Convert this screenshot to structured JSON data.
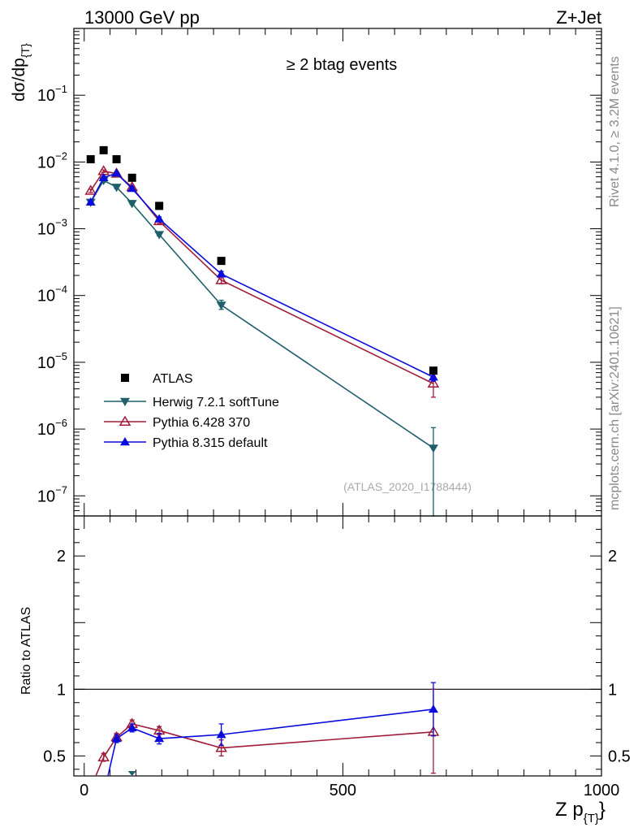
{
  "header": {
    "energy": "13000 GeV pp",
    "process": "Z+Jet",
    "side_label_top": "Rivet 4.1.0, ≥ 3.2M events",
    "side_label_bottom": "mcplots.cern.ch [arXiv:2401.10621]"
  },
  "chart_data": [
    {
      "type": "scatter",
      "panel": "main",
      "title": "≥ 2 btag events",
      "watermark": "(ATLAS_2020_I1788444)",
      "ylabel": "dσ/dp",
      "ylabel_sub": "{T}",
      "yscale": "log",
      "ylim": [
        5e-08,
        1
      ],
      "xlim": [
        -20,
        1000
      ],
      "ytick_labels": [
        {
          "base": "10",
          "exp": "−1",
          "value": 0.1
        },
        {
          "base": "10",
          "exp": "−2",
          "value": 0.01
        },
        {
          "base": "10",
          "exp": "−3",
          "value": 0.001
        },
        {
          "base": "10",
          "exp": "−4",
          "value": 0.0001
        },
        {
          "base": "10",
          "exp": "−5",
          "value": 1e-05
        },
        {
          "base": "10",
          "exp": "−6",
          "value": 1e-06
        },
        {
          "base": "10",
          "exp": "−7",
          "value": 1e-07
        }
      ],
      "series": [
        {
          "name": "ATLAS",
          "style": "data",
          "marker": "square",
          "color": "#000000",
          "x": [
            12.5,
            37.5,
            62.5,
            92.5,
            145,
            265,
            675
          ],
          "y": [
            0.011,
            0.015,
            0.011,
            0.0058,
            0.0022,
            0.00033,
            7.5e-06
          ]
        },
        {
          "name": "Herwig 7.2.1 softTune",
          "style": "line",
          "marker": "triangle-down",
          "color": "#1f5f6b",
          "x": [
            12.5,
            37.5,
            62.5,
            92.5,
            145,
            265,
            675
          ],
          "y": [
            0.0025,
            0.0053,
            0.0042,
            0.0024,
            0.00082,
            7.2e-05,
            5.2e-07
          ],
          "err_hi": [
            0.0027,
            0.0056,
            0.0044,
            0.0025,
            0.00086,
            8.5e-05,
            1.05e-06
          ],
          "err_lo": [
            0.0023,
            0.005,
            0.004,
            0.0023,
            0.00078,
            6.2e-05,
            5e-08
          ]
        },
        {
          "name": "Pythia 6.428 370",
          "style": "line",
          "marker": "triangle-up-open",
          "color": "#a01c3a",
          "x": [
            12.5,
            37.5,
            62.5,
            92.5,
            145,
            265,
            675
          ],
          "y": [
            0.0037,
            0.0073,
            0.0067,
            0.0042,
            0.0013,
            0.00017,
            4.8e-06
          ],
          "err_hi": [
            0.0039,
            0.0076,
            0.007,
            0.0044,
            0.0014,
            0.00019,
            6.6e-06
          ],
          "err_lo": [
            0.0035,
            0.007,
            0.0064,
            0.004,
            0.0012,
            0.00015,
            3e-06
          ]
        },
        {
          "name": "Pythia 8.315 default",
          "style": "line",
          "marker": "triangle-up",
          "color": "#0a0adc",
          "x": [
            12.5,
            37.5,
            62.5,
            92.5,
            145,
            265,
            675
          ],
          "y": [
            0.0025,
            0.0058,
            0.0068,
            0.004,
            0.0014,
            0.00021,
            6e-06
          ],
          "err_hi": [
            0.0027,
            0.0061,
            0.0071,
            0.0042,
            0.0015,
            0.00023,
            6.8e-06
          ],
          "err_lo": [
            0.0023,
            0.0055,
            0.0065,
            0.0038,
            0.0013,
            0.00019,
            5.2e-06
          ]
        }
      ]
    },
    {
      "type": "line",
      "panel": "ratio",
      "ylabel": "Ratio to ATLAS",
      "xlabel": "Z p",
      "xlabel_sub": "{T}",
      "xlim": [
        -20,
        1000
      ],
      "ylim": [
        0.35,
        2.3
      ],
      "xtick_labels": [
        "0",
        "500",
        "1000"
      ],
      "ytick_labels": [
        "0.5",
        "1",
        "2"
      ],
      "reference_line": 1,
      "series": [
        {
          "name": "Herwig 7.2.1 softTune",
          "color": "#1f5f6b",
          "x": [
            92.5
          ],
          "y": [
            0.35
          ],
          "err_hi": [
            0.38
          ],
          "err_lo": [
            0.35
          ]
        },
        {
          "name": "Pythia 6.428 370",
          "color": "#a01c3a",
          "marker": "triangle-up-open",
          "x": [
            37.5,
            62.5,
            92.5,
            145,
            265,
            675
          ],
          "y": [
            0.49,
            0.64,
            0.74,
            0.69,
            0.56,
            0.68
          ],
          "err_hi": [
            0.52,
            0.67,
            0.77,
            0.72,
            0.62,
            1.0
          ],
          "err_lo": [
            0.46,
            0.61,
            0.71,
            0.66,
            0.5,
            0.37
          ]
        },
        {
          "name": "Pythia 8.315 default",
          "color": "#0a0adc",
          "marker": "triangle-up",
          "x": [
            62.5,
            92.5,
            145,
            265,
            675
          ],
          "y": [
            0.63,
            0.71,
            0.63,
            0.66,
            0.85
          ],
          "err_hi": [
            0.66,
            0.74,
            0.67,
            0.74,
            1.05
          ],
          "err_lo": [
            0.6,
            0.68,
            0.59,
            0.58,
            0.65
          ]
        }
      ]
    }
  ]
}
